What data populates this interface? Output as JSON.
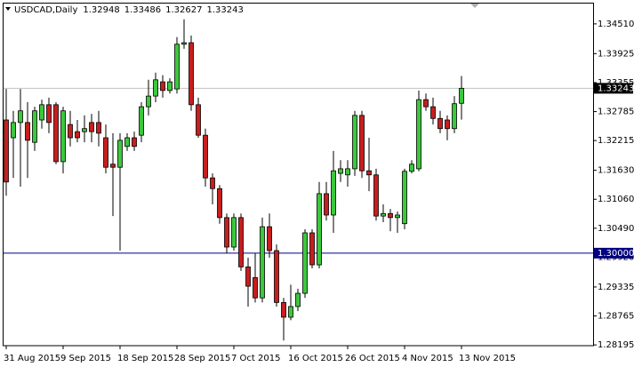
{
  "chart_data": {
    "type": "candlestick",
    "title": "USDCAD,Daily",
    "categories": [
      "31 Aug 2015",
      null,
      null,
      null,
      null,
      null,
      null,
      null,
      "9 Sep 2015",
      null,
      null,
      null,
      null,
      null,
      null,
      null,
      "18 Sep 2015",
      null,
      null,
      null,
      null,
      null,
      null,
      null,
      "28 Sep 2015",
      null,
      null,
      null,
      null,
      null,
      null,
      null,
      "7 Oct 2015",
      null,
      null,
      null,
      null,
      null,
      null,
      null,
      "16 Oct 2015",
      null,
      null,
      null,
      null,
      null,
      null,
      null,
      "26 Oct 2015",
      null,
      null,
      null,
      null,
      null,
      null,
      null,
      "4 Nov 2015",
      null,
      null,
      null,
      null,
      null,
      null,
      null,
      "13 Nov 2015"
    ],
    "open": [
      1.3262,
      1.3227,
      1.3257,
      1.3257,
      1.3218,
      1.3262,
      1.3292,
      1.3292,
      1.318,
      1.3253,
      1.3239,
      1.3239,
      1.3257,
      1.3257,
      1.3227,
      1.3175,
      1.3169,
      1.321,
      1.3227,
      1.3232,
      1.3288,
      1.3309,
      1.3337,
      1.332,
      1.3323,
      1.3411,
      1.3414,
      1.3292,
      1.3232,
      1.3148,
      1.3127,
      1.307,
      1.3012,
      1.307,
      1.2973,
      1.2952,
      1.2912,
      1.3052,
      1.3005,
      1.2903,
      1.2874,
      1.2895,
      1.2921,
      1.304,
      1.2977,
      1.3117,
      1.3075,
      1.3157,
      1.3154,
      1.3166,
      1.3271,
      1.3162,
      1.3154,
      1.3073,
      1.3078,
      1.307,
      1.3058,
      1.3161,
      1.3166,
      1.3302,
      1.3288,
      1.3265,
      1.3262,
      1.3245,
      1.32948
    ],
    "high": [
      1.3323,
      1.328,
      1.3323,
      1.3297,
      1.3288,
      1.3302,
      1.3306,
      1.3297,
      1.3288,
      1.328,
      1.3262,
      1.3271,
      1.3274,
      1.328,
      1.3253,
      1.3236,
      1.3236,
      1.3236,
      1.3239,
      1.3297,
      1.3341,
      1.3355,
      1.335,
      1.3344,
      1.3425,
      1.346,
      1.3428,
      1.3306,
      1.3245,
      1.3157,
      1.3134,
      1.3078,
      1.3078,
      1.3078,
      1.2991,
      1.3,
      1.307,
      1.3078,
      1.3017,
      1.2912,
      1.2938,
      1.293,
      1.3047,
      1.3047,
      1.314,
      1.314,
      1.3201,
      1.3183,
      1.3183,
      1.328,
      1.328,
      1.3227,
      1.3166,
      1.3096,
      1.3087,
      1.3082,
      1.3166,
      1.3183,
      1.332,
      1.3314,
      1.3306,
      1.328,
      1.3271,
      1.3309,
      1.33486
    ],
    "low": [
      1.3113,
      1.3148,
      1.3131,
      1.3148,
      1.3201,
      1.3245,
      1.3236,
      1.3175,
      1.3157,
      1.321,
      1.3218,
      1.3218,
      1.3218,
      1.321,
      1.3157,
      1.3073,
      1.3005,
      1.3201,
      1.3201,
      1.3218,
      1.3271,
      1.3297,
      1.3306,
      1.3314,
      1.3314,
      1.3402,
      1.328,
      1.3227,
      1.3131,
      1.3096,
      1.3058,
      1.3,
      1.3005,
      1.2965,
      1.2895,
      1.2903,
      1.2903,
      1.2991,
      1.2895,
      1.2828,
      1.2868,
      1.2886,
      1.2912,
      1.297,
      1.297,
      1.3064,
      1.304,
      1.314,
      1.3131,
      1.3152,
      1.3148,
      1.3122,
      1.3064,
      1.3061,
      1.3043,
      1.304,
      1.3047,
      1.3157,
      1.3161,
      1.328,
      1.3253,
      1.3236,
      1.3222,
      1.3236,
      1.32627
    ],
    "close": [
      1.314,
      1.3257,
      1.328,
      1.3222,
      1.328,
      1.3292,
      1.3257,
      1.318,
      1.328,
      1.3227,
      1.3227,
      1.3245,
      1.3239,
      1.3236,
      1.3169,
      1.3169,
      1.3222,
      1.3227,
      1.321,
      1.3288,
      1.3309,
      1.3341,
      1.332,
      1.3337,
      1.3411,
      1.3414,
      1.3292,
      1.3232,
      1.3148,
      1.3127,
      1.307,
      1.3012,
      1.307,
      1.2973,
      1.2935,
      1.2912,
      1.3052,
      1.3005,
      1.2903,
      1.2874,
      1.2895,
      1.2921,
      1.304,
      1.2977,
      1.3117,
      1.3075,
      1.3162,
      1.3166,
      1.3166,
      1.3271,
      1.3162,
      1.3154,
      1.3073,
      1.3078,
      1.307,
      1.3075,
      1.3161,
      1.3175,
      1.3302,
      1.3288,
      1.3265,
      1.3245,
      1.3245,
      1.3294,
      1.33243
    ],
    "up_color": "#3cc83c",
    "down_color": "#c81e1e",
    "price_line_color": "#c0c0c0",
    "ylim": [
      1.2818,
      1.3491
    ],
    "yticks": [
      {
        "value": 1.3451,
        "label": "1.34510"
      },
      {
        "value": 1.33925,
        "label": "1.33925"
      },
      {
        "value": 1.33355,
        "label": "1.33355"
      },
      {
        "value": 1.32785,
        "label": "1.32785"
      },
      {
        "value": 1.32215,
        "label": "1.32215"
      },
      {
        "value": 1.3163,
        "label": "1.31630"
      },
      {
        "value": 1.3106,
        "label": "1.31060"
      },
      {
        "value": 1.3049,
        "label": "1.30490"
      },
      {
        "value": 1.2992,
        "label": "1.29920"
      },
      {
        "value": 1.29335,
        "label": "1.29335"
      },
      {
        "value": 1.28765,
        "label": "1.28765"
      },
      {
        "value": 1.28195,
        "label": "1.28195"
      }
    ],
    "hlines": [
      {
        "value": 1.3,
        "label": "1.30000",
        "color": "#000080"
      }
    ]
  }
}
